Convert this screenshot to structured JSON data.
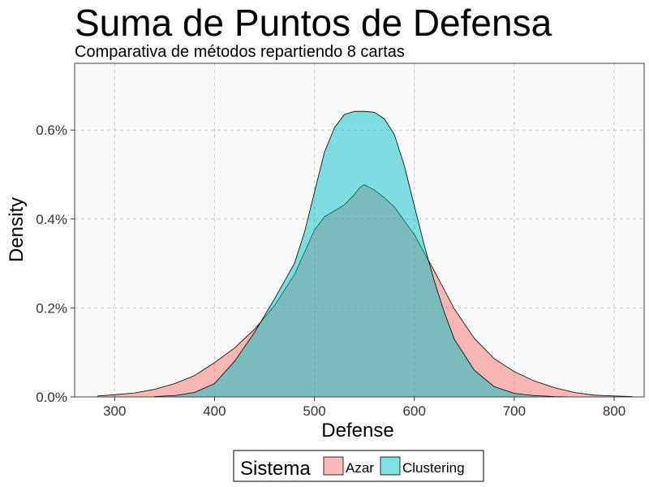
{
  "chart_data": {
    "type": "area",
    "title": "Suma de Puntos de Defensa",
    "subtitle": "Comparativa de métodos repartiendo 8 cartas",
    "xlabel": "Defense",
    "ylabel": "Density",
    "xlim": [
      260,
      830
    ],
    "ylim": [
      0,
      0.0075
    ],
    "x_ticks": [
      300,
      400,
      500,
      600,
      700,
      800
    ],
    "x_tick_labels": [
      "300",
      "400",
      "500",
      "600",
      "700",
      "800"
    ],
    "y_ticks": [
      0,
      0.002,
      0.004,
      0.006
    ],
    "y_tick_labels": [
      "0.0%",
      "0.2%",
      "0.4%",
      "0.6%"
    ],
    "grid": true,
    "legend": {
      "title": "Sistema",
      "position": "bottom",
      "entries": [
        "Azar",
        "Clustering"
      ]
    },
    "series": [
      {
        "name": "Azar",
        "color": "#F8766D",
        "x": [
          283,
          300,
          320,
          340,
          360,
          380,
          400,
          420,
          440,
          460,
          480,
          500,
          510,
          520,
          530,
          540,
          546,
          550,
          560,
          570,
          580,
          600,
          620,
          640,
          660,
          680,
          700,
          720,
          740,
          760,
          780,
          800,
          818
        ],
        "values": [
          2e-05,
          5e-05,
          9e-05,
          0.00017,
          0.0003,
          0.00048,
          0.00077,
          0.0011,
          0.00152,
          0.00205,
          0.00275,
          0.00375,
          0.00405,
          0.00418,
          0.00432,
          0.00455,
          0.00472,
          0.00477,
          0.00465,
          0.00448,
          0.00427,
          0.00365,
          0.00283,
          0.00198,
          0.00132,
          0.00086,
          0.00057,
          0.00036,
          0.00021,
          0.0001,
          4e-05,
          2e-05,
          1e-05
        ]
      },
      {
        "name": "Clustering",
        "color": "#00BFC4",
        "x": [
          340,
          360,
          380,
          400,
          420,
          440,
          460,
          480,
          490,
          500,
          510,
          520,
          530,
          540,
          550,
          560,
          570,
          580,
          590,
          600,
          610,
          620,
          630,
          640,
          660,
          680,
          700,
          720,
          740,
          760
        ],
        "values": [
          1e-05,
          3e-05,
          0.0001,
          0.0003,
          0.0008,
          0.00145,
          0.0022,
          0.003,
          0.0037,
          0.0046,
          0.0055,
          0.00605,
          0.00635,
          0.00642,
          0.00642,
          0.0064,
          0.00625,
          0.0059,
          0.0052,
          0.0043,
          0.0034,
          0.0026,
          0.0019,
          0.0013,
          0.0006,
          0.00023,
          8e-05,
          3e-05,
          1e-05,
          0.0
        ]
      }
    ]
  }
}
